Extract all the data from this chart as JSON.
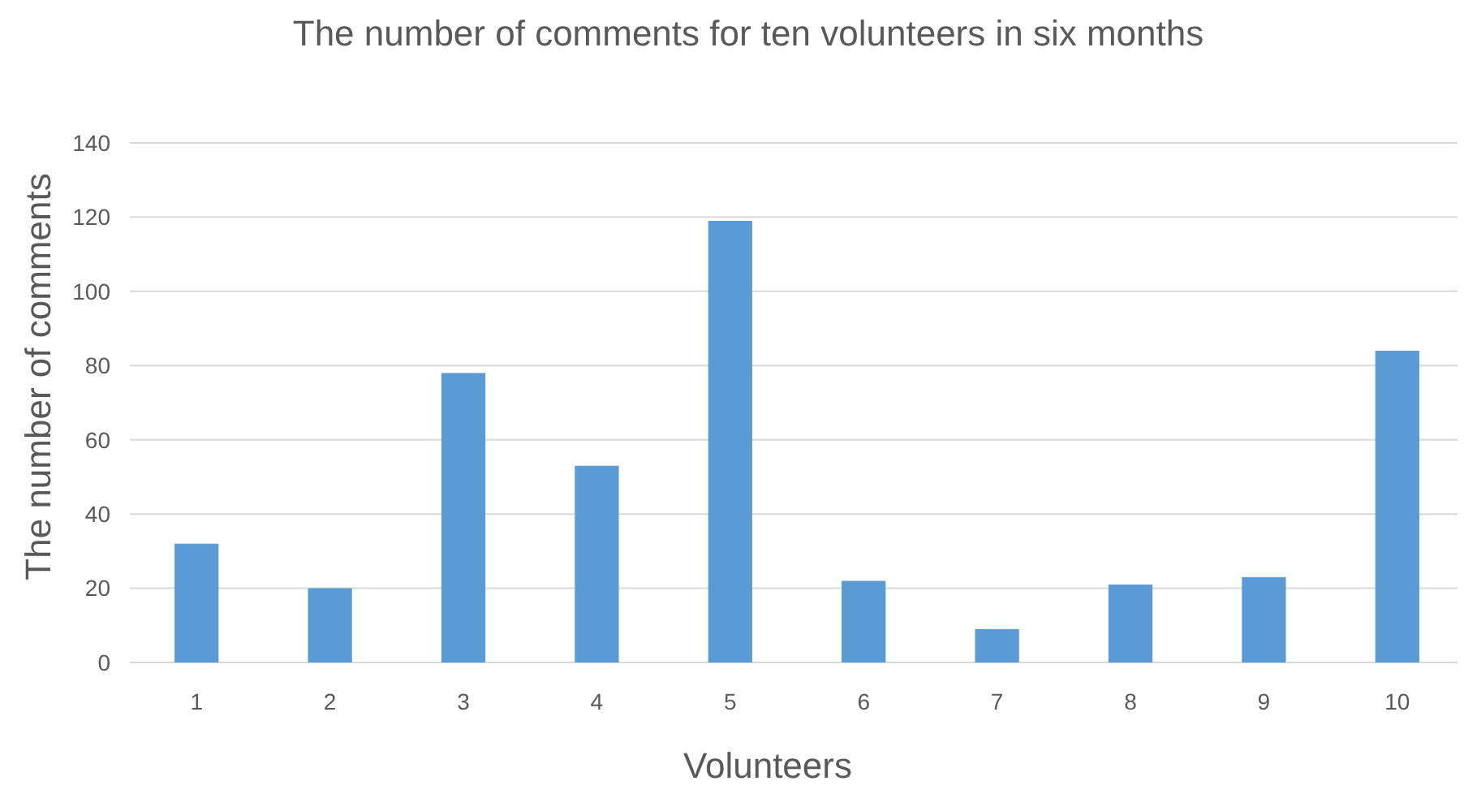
{
  "chart_data": {
    "type": "bar",
    "title": "The number of comments for ten volunteers in six months",
    "xlabel": "Volunteers",
    "ylabel": "The number of comments",
    "categories": [
      "1",
      "2",
      "3",
      "4",
      "5",
      "6",
      "7",
      "8",
      "9",
      "10"
    ],
    "values": [
      32,
      20,
      78,
      53,
      119,
      22,
      9,
      21,
      23,
      84
    ],
    "color": "#5b9bd5",
    "ylim": [
      0,
      140
    ],
    "yticks": [
      0,
      20,
      40,
      60,
      80,
      100,
      120,
      140
    ],
    "grid": "y"
  }
}
